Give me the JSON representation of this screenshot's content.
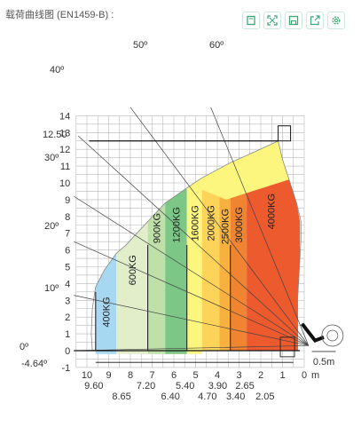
{
  "header": {
    "title": "载荷曲线图 (EN1459-B) :",
    "toolbar": [
      {
        "icon": "fit-screen-icon"
      },
      {
        "icon": "fullscreen-icon"
      },
      {
        "icon": "save-icon"
      },
      {
        "icon": "share-icon"
      },
      {
        "icon": "settings-icon"
      }
    ],
    "accent": "#3aa776"
  },
  "chart_data": {
    "type": "area",
    "title": "",
    "xlabel": "m",
    "ylabel": "",
    "xlim": [
      0,
      10
    ],
    "ylim": [
      -1,
      14
    ],
    "x_ticks": [
      10,
      9,
      8,
      7,
      6,
      5,
      4,
      3,
      2,
      1,
      0
    ],
    "y_ticks": [
      -1,
      0,
      1,
      2,
      3,
      4,
      5,
      6,
      7,
      8,
      9,
      10,
      11,
      12,
      13,
      14
    ],
    "grid": true,
    "zone_bounds_x": [
      {
        "x": 9.6,
        "label": "9.60"
      },
      {
        "x": 8.65,
        "label": "8.65"
      },
      {
        "x": 7.2,
        "label": "7.20"
      },
      {
        "x": 6.4,
        "label": "6.40"
      },
      {
        "x": 5.4,
        "label": "5.40"
      },
      {
        "x": 4.7,
        "label": "4.70"
      },
      {
        "x": 3.9,
        "label": "3.90"
      },
      {
        "x": 3.4,
        "label": "3.40"
      },
      {
        "x": 2.65,
        "label": "2.65"
      },
      {
        "x": 2.05,
        "label": "2.05"
      }
    ],
    "zones": [
      {
        "name": "400KG",
        "outer_x": 9.6,
        "color": "#a6d8f2"
      },
      {
        "name": "600KG",
        "outer_x": 8.65,
        "color": "#e2edca"
      },
      {
        "name": "900KG",
        "outer_x": 7.2,
        "color": "#bfe0a8"
      },
      {
        "name": "1200KG",
        "outer_x": 6.4,
        "color": "#7cc785"
      },
      {
        "name": "1600KG",
        "outer_x": 5.4,
        "color": "#fcf57e"
      },
      {
        "name": "2000KG",
        "outer_x": 4.7,
        "color": "#fdd35a"
      },
      {
        "name": "2500KG",
        "outer_x": 3.9,
        "color": "#f8b13f"
      },
      {
        "name": "3000KG",
        "outer_x": 3.4,
        "color": "#f18431"
      },
      {
        "name": "4000KG",
        "outer_x": 2.65,
        "color": "#ec5a2e"
      }
    ],
    "angles": [
      {
        "label": "0º",
        "value": 0
      },
      {
        "label": "10º",
        "value": 10
      },
      {
        "label": "20º",
        "value": 20
      },
      {
        "label": "30º",
        "value": 30
      },
      {
        "label": "40º",
        "value": 40
      },
      {
        "label": "50º",
        "value": 50
      },
      {
        "label": "60º",
        "value": 60
      }
    ],
    "annotations": {
      "max_height": "12.50",
      "min_height": "-4.64º",
      "scale_bar": "0.5m",
      "unit": "m"
    }
  }
}
